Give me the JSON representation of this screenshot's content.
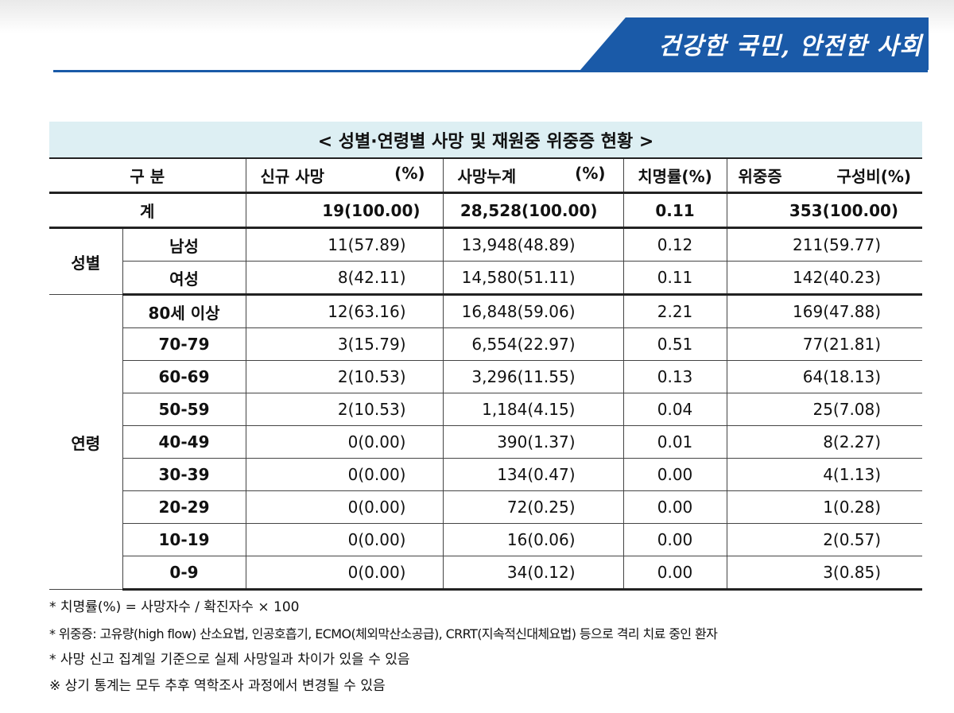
{
  "banner": "건강한 국민, 안전한 사회",
  "table": {
    "title": "< 성별·연령별 사망 및 재원중 위중증 현황 >",
    "headers": {
      "category": "구 분",
      "new_deaths": "신규 사망",
      "new_deaths_pct": "(%)",
      "cum_deaths": "사망누계",
      "cum_deaths_pct": "(%)",
      "fatality": "치명률(%)",
      "severe": "위중증",
      "severe_pct": "구성비(%)"
    },
    "total": {
      "label": "계",
      "new": "19(100.00)",
      "cum": "28,528(100.00)",
      "rate": "0.11",
      "severe": "353(100.00)"
    },
    "sex_group_label": "성별",
    "sex_rows": [
      {
        "label": "남성",
        "new": "11(57.89)",
        "cum": "13,948(48.89)",
        "rate": "0.12",
        "severe": "211(59.77)"
      },
      {
        "label": "여성",
        "new": "8(42.11)",
        "cum": "14,580(51.11)",
        "rate": "0.11",
        "severe": "142(40.23)"
      }
    ],
    "age_group_label": "연령",
    "age_rows": [
      {
        "label": "80세 이상",
        "new": "12(63.16)",
        "cum": "16,848(59.06)",
        "rate": "2.21",
        "severe": "169(47.88)"
      },
      {
        "label": "70-79",
        "new": "3(15.79)",
        "cum": "6,554(22.97)",
        "rate": "0.51",
        "severe": "77(21.81)"
      },
      {
        "label": "60-69",
        "new": "2(10.53)",
        "cum": "3,296(11.55)",
        "rate": "0.13",
        "severe": "64(18.13)"
      },
      {
        "label": "50-59",
        "new": "2(10.53)",
        "cum": "1,184(4.15)",
        "rate": "0.04",
        "severe": "25(7.08)"
      },
      {
        "label": "40-49",
        "new": "0(0.00)",
        "cum": "390(1.37)",
        "rate": "0.01",
        "severe": "8(2.27)"
      },
      {
        "label": "30-39",
        "new": "0(0.00)",
        "cum": "134(0.47)",
        "rate": "0.00",
        "severe": "4(1.13)"
      },
      {
        "label": "20-29",
        "new": "0(0.00)",
        "cum": "72(0.25)",
        "rate": "0.00",
        "severe": "1(0.28)"
      },
      {
        "label": "10-19",
        "new": "0(0.00)",
        "cum": "16(0.06)",
        "rate": "0.00",
        "severe": "2(0.57)"
      },
      {
        "label": "0-9",
        "new": "0(0.00)",
        "cum": "34(0.12)",
        "rate": "0.00",
        "severe": "3(0.85)"
      }
    ]
  },
  "notes": [
    "* 치명률(%) = 사망자수 / 확진자수 × 100",
    "* 위중증: 고유량(high flow) 산소요법, 인공호흡기, ECMO(체외막산소공급), CRRT(지속적신대체요법) 등으로 격리 치료 중인 환자",
    "* 사망 신고 집계일 기준으로 실제 사망일과 차이가 있을 수 있음",
    "※ 상기 통계는 모두 추후 역학조사 과정에서 변경될 수 있음"
  ]
}
